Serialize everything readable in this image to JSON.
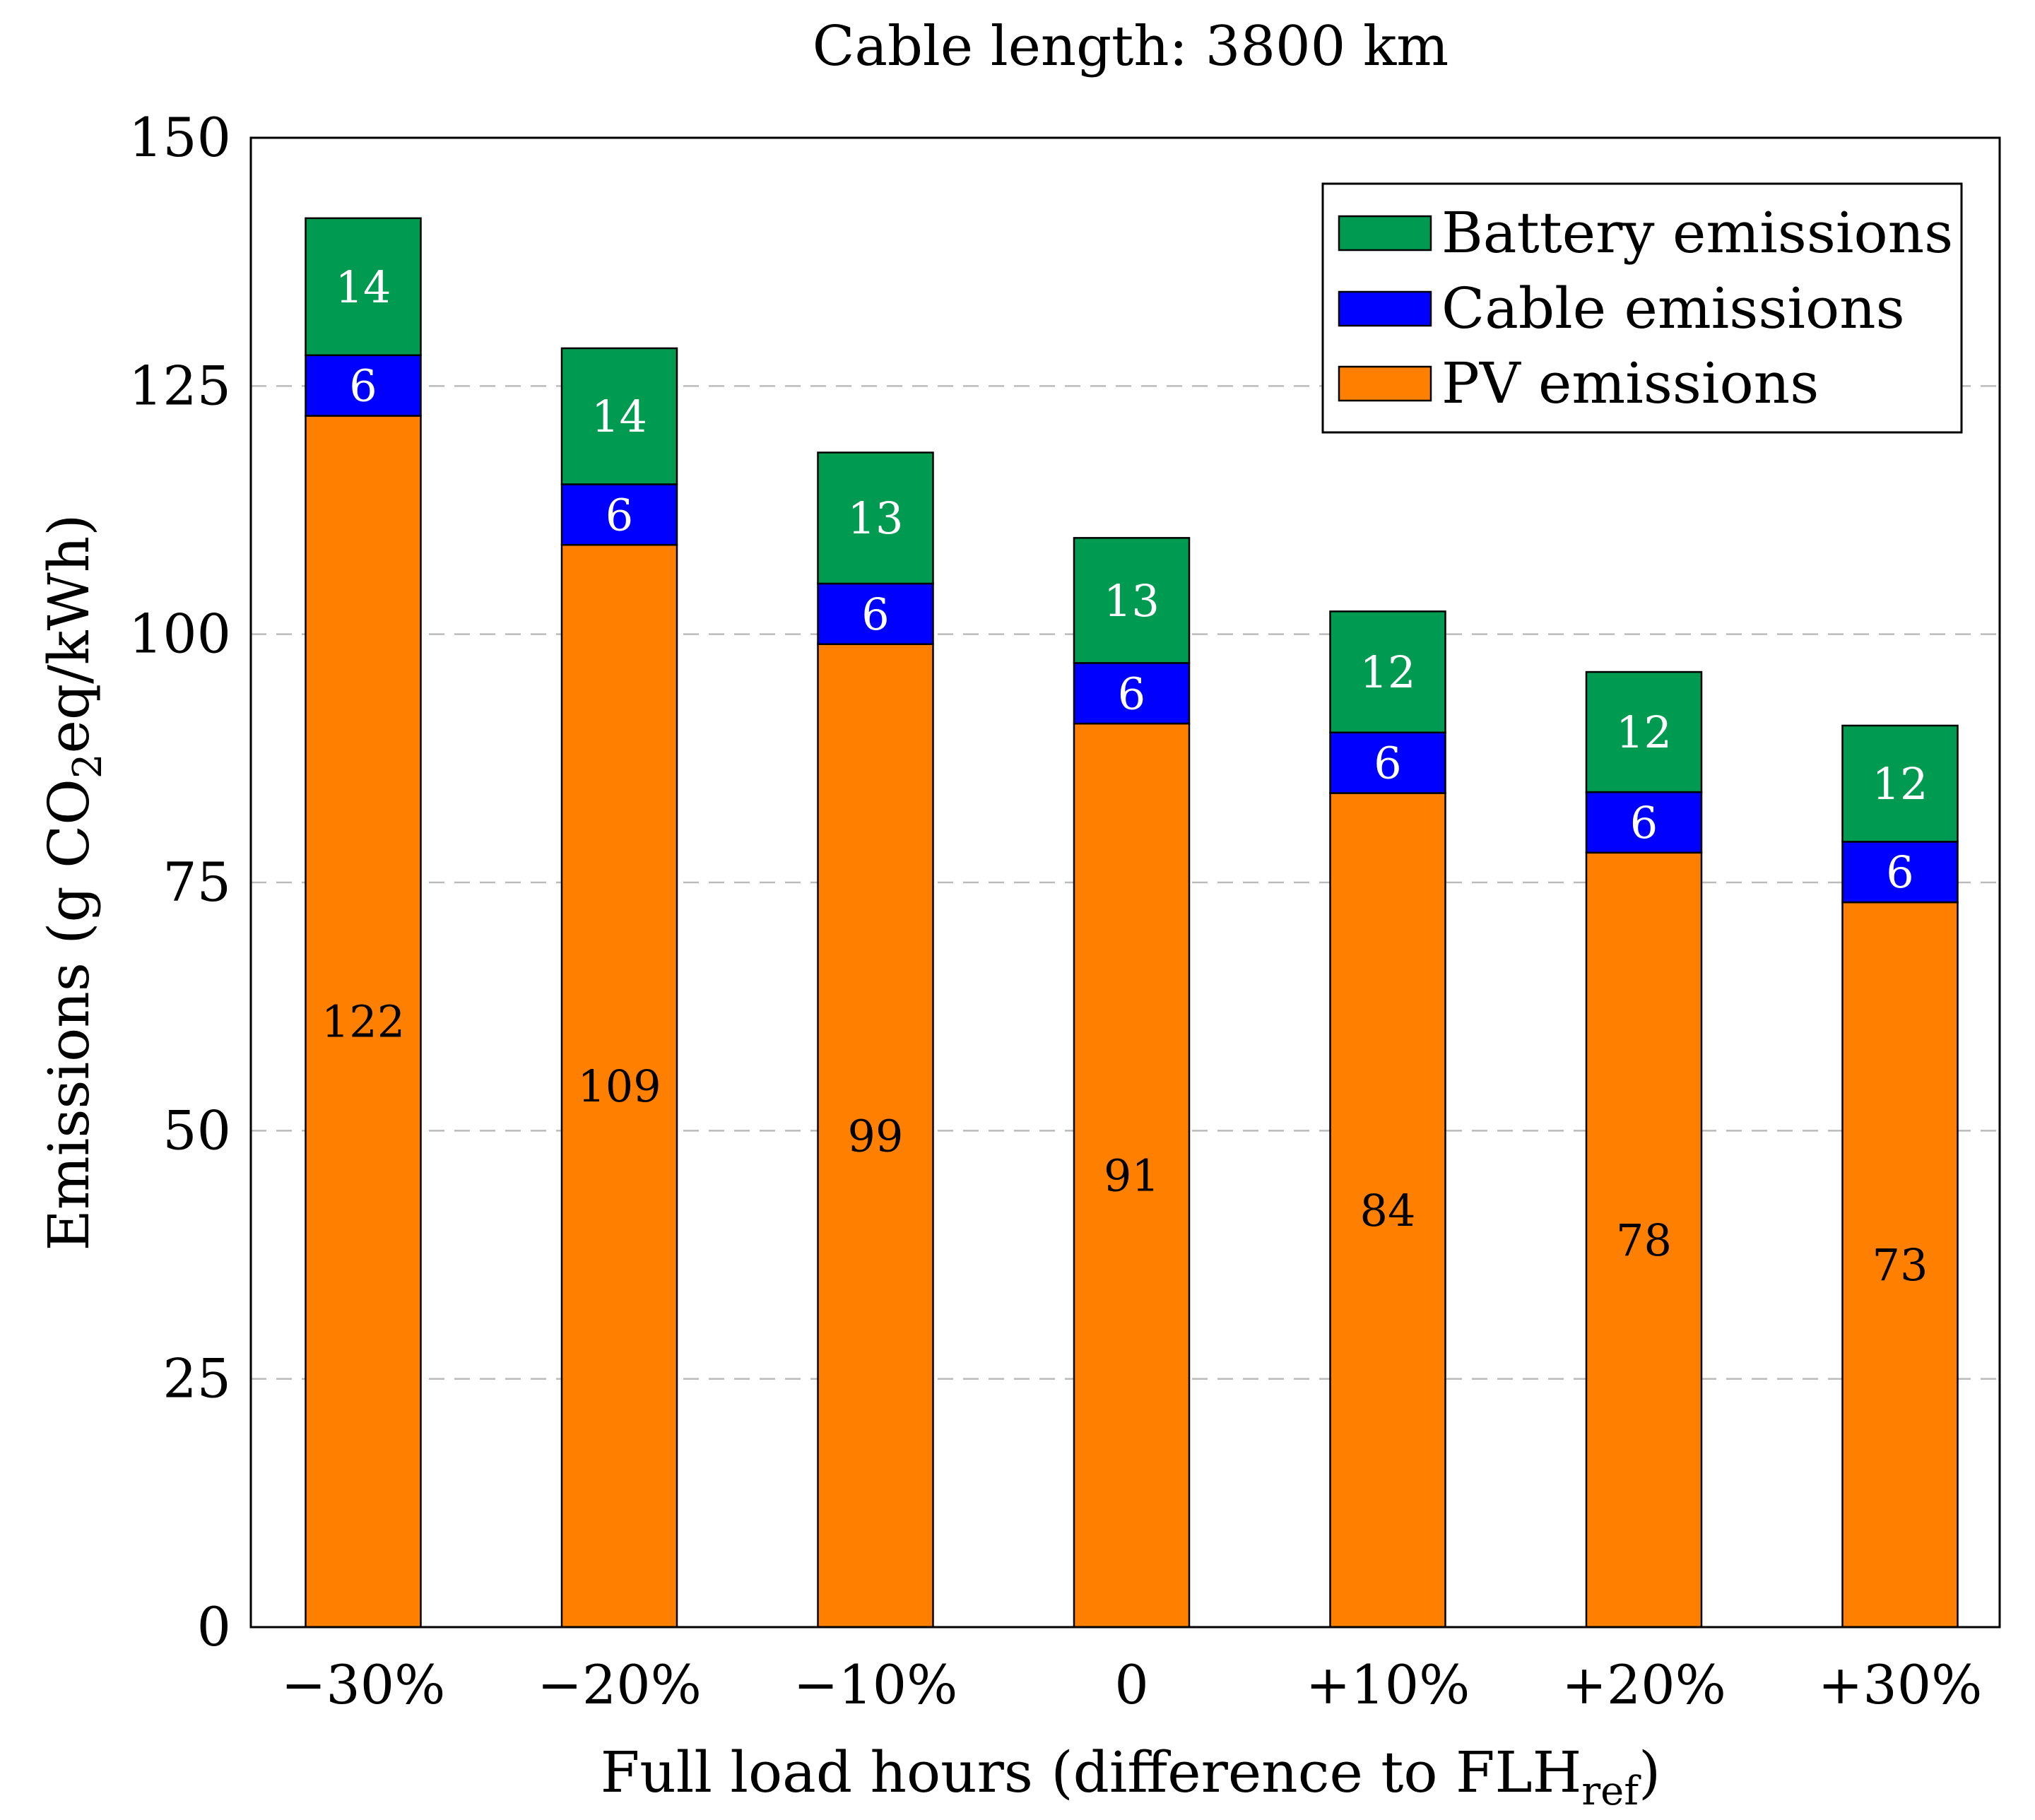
{
  "chart_data": {
    "type": "bar",
    "stacked": true,
    "title": "Cable length: 3800 km",
    "xlabel": {
      "main": "Full load hours (difference to FLH",
      "sub": "ref",
      "end": ")"
    },
    "ylabel": {
      "main": "Emissions (g CO",
      "sub": "2",
      "end": "eq/kWh)"
    },
    "ylim": [
      0,
      150
    ],
    "yticks": [
      0,
      25,
      50,
      75,
      100,
      125,
      150
    ],
    "grid": "horizontal dashed",
    "legend_position": "top-right",
    "categories": [
      "−30%",
      "−20%",
      "−10%",
      "0",
      "+10%",
      "+20%",
      "+30%"
    ],
    "series": [
      {
        "name": "PV emissions",
        "color": "#FF8000",
        "label_color": "#000000",
        "values": [
          122,
          109,
          99,
          91,
          84,
          78,
          73
        ],
        "labels": [
          "122",
          "109",
          "99",
          "91",
          "84",
          "78",
          "73"
        ]
      },
      {
        "name": "Cable emissions",
        "color": "#0000FF",
        "label_color": "#FFFFFF",
        "values": [
          6.1,
          6.1,
          6.1,
          6.1,
          6.1,
          6.1,
          6.1
        ],
        "labels": [
          "6",
          "6",
          "6",
          "6",
          "6",
          "6",
          "6"
        ]
      },
      {
        "name": "Battery emissions",
        "color": "#009A50",
        "label_color": "#FFFFFF",
        "values": [
          13.8,
          13.7,
          13.2,
          12.6,
          12.2,
          12.1,
          11.7
        ],
        "labels": [
          "14",
          "14",
          "13",
          "13",
          "12",
          "12",
          "12"
        ]
      }
    ],
    "legend_order": [
      "Battery emissions",
      "Cable emissions",
      "PV emissions"
    ]
  }
}
